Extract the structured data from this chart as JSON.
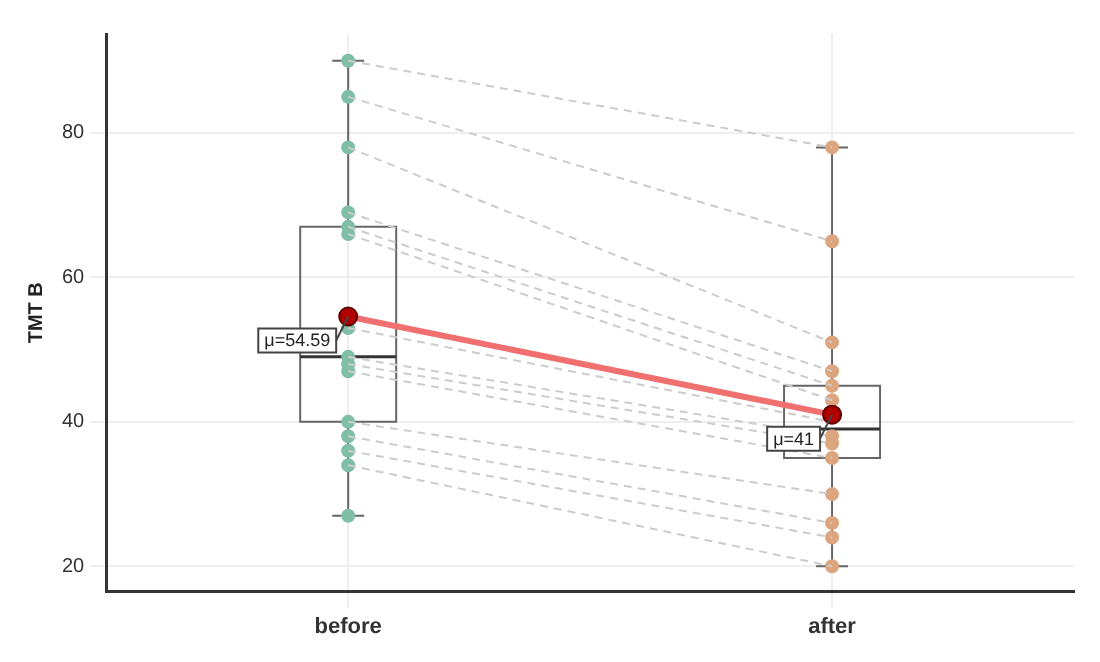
{
  "chart_data": {
    "type": "box",
    "ylabel": "TMT B",
    "categories": [
      "before",
      "after"
    ],
    "boxes": [
      {
        "low": 27,
        "q1": 40,
        "median": 49,
        "q3": 67,
        "high": 90,
        "mean": 54.59
      },
      {
        "low": 20,
        "q1": 35,
        "median": 39,
        "q3": 45,
        "high": 78,
        "mean": 41
      }
    ],
    "series": [
      {
        "type": "line",
        "x": [
          "before",
          "after"
        ],
        "values": [
          90,
          78
        ],
        "color": "#cccccc",
        "line_style": "dashed"
      },
      {
        "type": "line",
        "x": [
          "before",
          "after"
        ],
        "values": [
          85,
          65
        ],
        "color": "#cccccc",
        "line_style": "dashed"
      },
      {
        "type": "line",
        "x": [
          "before",
          "after"
        ],
        "values": [
          78,
          51
        ],
        "color": "#cccccc",
        "line_style": "dashed"
      },
      {
        "type": "line",
        "x": [
          "before",
          "after"
        ],
        "values": [
          69,
          47
        ],
        "color": "#cccccc",
        "line_style": "dashed"
      },
      {
        "type": "line",
        "x": [
          "before",
          "after"
        ],
        "values": [
          67,
          45
        ],
        "color": "#cccccc",
        "line_style": "dashed"
      },
      {
        "type": "line",
        "x": [
          "before",
          "after"
        ],
        "values": [
          66,
          43
        ],
        "color": "#cccccc",
        "line_style": "dashed"
      },
      {
        "type": "line",
        "x": [
          "before",
          "after"
        ],
        "values": [
          53,
          40
        ],
        "color": "#cccccc",
        "line_style": "dashed"
      },
      {
        "type": "line",
        "x": [
          "before",
          "after"
        ],
        "values": [
          49,
          38
        ],
        "color": "#cccccc",
        "line_style": "dashed"
      },
      {
        "type": "line",
        "x": [
          "before",
          "after"
        ],
        "values": [
          48,
          37
        ],
        "color": "#cccccc",
        "line_style": "dashed"
      },
      {
        "type": "line",
        "x": [
          "before",
          "after"
        ],
        "values": [
          47,
          35
        ],
        "color": "#cccccc",
        "line_style": "dashed"
      },
      {
        "type": "line",
        "x": [
          "before",
          "after"
        ],
        "values": [
          40,
          30
        ],
        "color": "#cccccc",
        "line_style": "dashed"
      },
      {
        "type": "line",
        "x": [
          "before",
          "after"
        ],
        "values": [
          38,
          26
        ],
        "color": "#cccccc",
        "line_style": "dashed"
      },
      {
        "type": "line",
        "x": [
          "before",
          "after"
        ],
        "values": [
          36,
          24
        ],
        "color": "#cccccc",
        "line_style": "dashed"
      },
      {
        "type": "line",
        "x": [
          "before",
          "after"
        ],
        "values": [
          34,
          20
        ],
        "color": "#cccccc",
        "line_style": "dashed"
      },
      {
        "type": "scatter",
        "x": [
          "before",
          "before",
          "before",
          "before",
          "before",
          "before",
          "before",
          "before",
          "before",
          "before",
          "before",
          "before",
          "before",
          "before",
          "before"
        ],
        "values": [
          90,
          85,
          78,
          69,
          67,
          66,
          53,
          49,
          48,
          47,
          40,
          38,
          36,
          34,
          27
        ],
        "color": "#7fbfa8",
        "marker": "circle"
      },
      {
        "type": "scatter",
        "x": [
          "after",
          "after",
          "after",
          "after",
          "after",
          "after",
          "after",
          "after",
          "after",
          "after",
          "after",
          "after",
          "after",
          "after"
        ],
        "values": [
          78,
          65,
          51,
          47,
          45,
          43,
          null,
          38,
          37,
          35,
          30,
          26,
          24,
          20
        ],
        "color": "#dca57e",
        "marker": "circle"
      },
      {
        "type": "line",
        "x": [
          "before",
          "after"
        ],
        "values": [
          54.59,
          41
        ],
        "color": "#f07070",
        "line_style": "solid"
      }
    ],
    "annotations": [
      {
        "text": "μ=54.59",
        "x": "before",
        "y": 54.59
      },
      {
        "text": "μ=41",
        "x": "after",
        "y": 41
      }
    ],
    "ylim": [
      16.5,
      93.7
    ],
    "yticks": [
      20,
      40,
      60,
      80
    ],
    "grid": true,
    "legend": false
  }
}
